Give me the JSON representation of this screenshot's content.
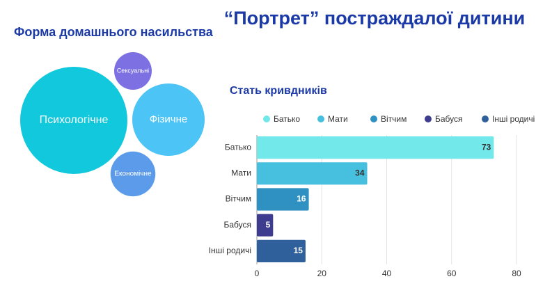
{
  "title": "“Портрет” постраждалої дитини",
  "chart_data": [
    {
      "type": "bubble",
      "title": "Форма домашнього насильства",
      "categories": [
        "Психологічне",
        "Фізичне",
        "Сексуальні",
        "Економічне"
      ],
      "values": [
        57,
        26,
        7,
        10
      ],
      "colors": [
        "#11c8dc",
        "#4cc4f5",
        "#7c70e2",
        "#5c9bea"
      ]
    },
    {
      "type": "bar",
      "title": "Стать кривдників",
      "categories": [
        "Батько",
        "Мати",
        "Вітчим",
        "Бабуся",
        "Інші родичі"
      ],
      "values": [
        73,
        34,
        16,
        5,
        15
      ],
      "colors": [
        "#72e8ea",
        "#46c0de",
        "#2f90c2",
        "#3d3c8e",
        "#2f609c"
      ],
      "xlim": [
        0,
        80
      ],
      "xticks": [
        0,
        20,
        40,
        60,
        80
      ],
      "grid": true,
      "legend": "top"
    }
  ]
}
